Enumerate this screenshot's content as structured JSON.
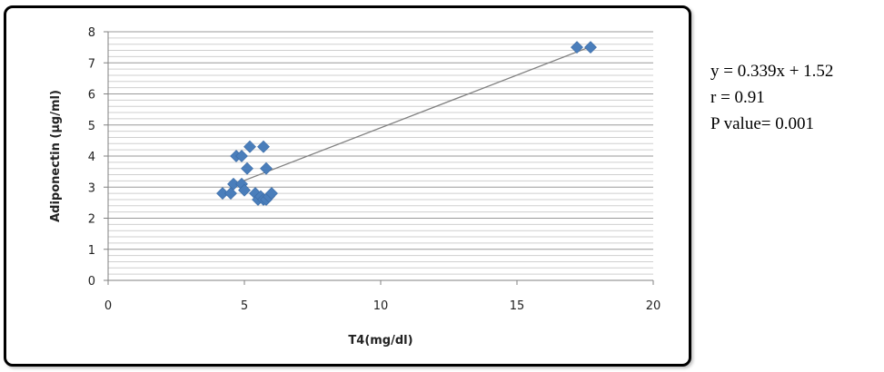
{
  "chart_data": {
    "type": "scatter",
    "title": "",
    "xlabel": "T4(mg/dl)",
    "ylabel": "Adiponectin (µg/ml)",
    "xlim": [
      0,
      20
    ],
    "ylim": [
      0,
      8
    ],
    "x_ticks": [
      "0",
      "5",
      "10",
      "15",
      "20"
    ],
    "y_ticks": [
      "0",
      "1",
      "2",
      "3",
      "4",
      "5",
      "6",
      "7",
      "8"
    ],
    "grid": "horizontal minor",
    "marker_color": "#4a7ebb",
    "trendline_color": "#808080",
    "series": [
      {
        "x": [
          4.2,
          4.5,
          4.6,
          4.7,
          4.9,
          4.9,
          5.0,
          5.1,
          5.2,
          5.4,
          5.5,
          5.6,
          5.7,
          5.7,
          5.8,
          5.8,
          5.9,
          6.0,
          17.2,
          17.7
        ],
        "y": [
          2.8,
          2.8,
          3.1,
          4.0,
          4.0,
          3.1,
          2.9,
          3.6,
          4.3,
          2.8,
          2.6,
          2.7,
          2.6,
          4.3,
          3.6,
          2.6,
          2.7,
          2.8,
          7.5,
          7.5
        ]
      }
    ],
    "trendline": {
      "slope": 0.339,
      "intercept": 1.52,
      "x_range": [
        4.5,
        17.6
      ]
    }
  },
  "stats": {
    "equation": "y = 0.339x + 1.52",
    "r": "r = 0.91",
    "p_value": "P value= 0.001"
  }
}
